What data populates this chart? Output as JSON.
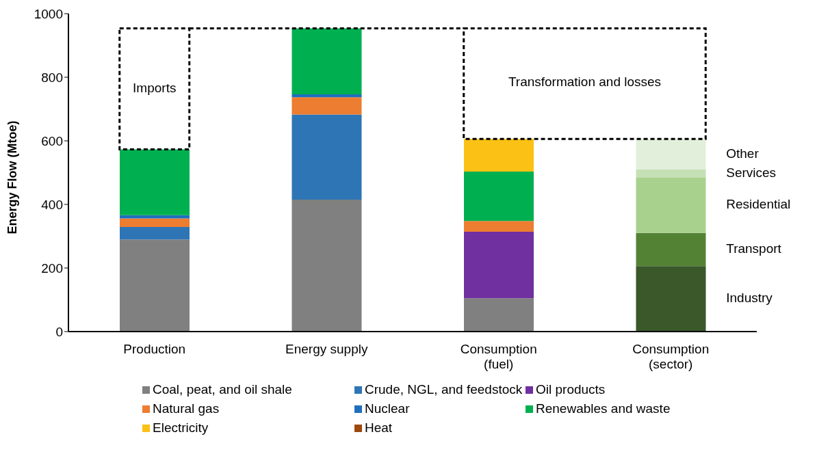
{
  "chart_data": {
    "type": "bar",
    "stacked": true,
    "ylabel": "Energy Flow (Mtoe)",
    "categories": [
      "Production",
      "Energy supply",
      "Consumption (fuel)",
      "Consumption (sector)"
    ],
    "series": [
      {
        "name": "Coal, peat, and oil shale",
        "color": "#808080",
        "values": [
          290,
          415,
          105,
          null
        ]
      },
      {
        "name": "Crude, NGL, and feedstock",
        "color": "#2e75b6",
        "values": [
          39,
          268,
          null,
          null
        ]
      },
      {
        "name": "Oil products",
        "color": "#7030a0",
        "values": [
          null,
          null,
          209,
          null
        ]
      },
      {
        "name": "Natural gas",
        "color": "#ed7d31",
        "values": [
          27,
          54,
          34,
          null
        ]
      },
      {
        "name": "Nuclear",
        "color": "#1f6fbf",
        "values": [
          10,
          9,
          null,
          null
        ]
      },
      {
        "name": "Renewables and waste",
        "color": "#00b050",
        "values": [
          207,
          208,
          155,
          null
        ]
      },
      {
        "name": "Electricity",
        "color": "#fcc115",
        "values": [
          null,
          null,
          103,
          null
        ]
      },
      {
        "name": "Heat",
        "color": "#9e480e",
        "values": [
          null,
          null,
          null,
          null
        ]
      },
      {
        "name": "Industry",
        "color": "#3a5829",
        "values": [
          null,
          null,
          null,
          206
        ]
      },
      {
        "name": "Transport",
        "color": "#548235",
        "values": [
          null,
          null,
          null,
          104
        ]
      },
      {
        "name": "Residential",
        "color": "#a9d18e",
        "values": [
          null,
          null,
          null,
          174
        ]
      },
      {
        "name": "Services",
        "color": "#c5e0b4",
        "values": [
          null,
          null,
          null,
          26
        ]
      },
      {
        "name": "Other",
        "color": "#e2efda",
        "values": [
          null,
          null,
          null,
          96
        ]
      }
    ],
    "ylim": [
      0,
      1000
    ],
    "yticks": [
      0,
      200,
      400,
      600,
      800,
      1000
    ],
    "grid": false,
    "legend": "bottom",
    "annotations": [
      "Imports",
      "Transformation and losses"
    ]
  }
}
